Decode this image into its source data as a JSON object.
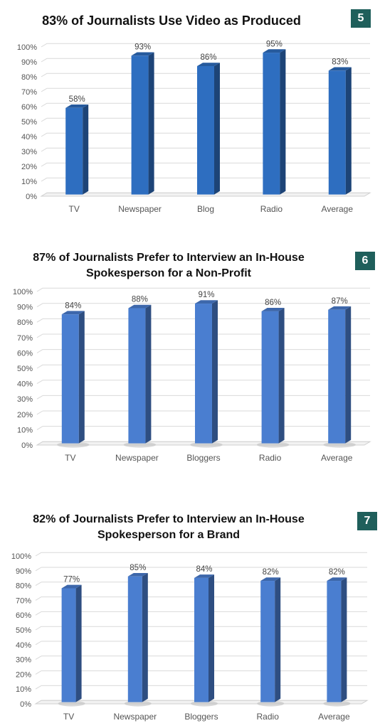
{
  "chart_data": [
    {
      "type": "bar",
      "title": "83% of Journalists Use Video as Produced",
      "badge": "5",
      "categories": [
        "TV",
        "Newspaper",
        "Blog",
        "Radio",
        "Average"
      ],
      "values": [
        58,
        93,
        86,
        95,
        83
      ],
      "value_labels": [
        "58%",
        "93%",
        "86%",
        "95%",
        "83%"
      ],
      "yticks": [
        "0%",
        "10%",
        "20%",
        "30%",
        "40%",
        "50%",
        "60%",
        "70%",
        "80%",
        "90%",
        "100%"
      ],
      "ylim": [
        0,
        100
      ],
      "grid": true,
      "bar_color": "#2e6ec0"
    },
    {
      "type": "bar",
      "title": "87% of Journalists Prefer to Interview an In-House Spokesperson for a Non-Profit",
      "title_lines": [
        "87% of Journalists Prefer to Interview an In-House",
        "Spokesperson for a Non-Profit"
      ],
      "badge": "6",
      "categories": [
        "TV",
        "Newspaper",
        "Bloggers",
        "Radio",
        "Average"
      ],
      "values": [
        84,
        88,
        91,
        86,
        87
      ],
      "value_labels": [
        "84%",
        "88%",
        "91%",
        "86%",
        "87%"
      ],
      "yticks": [
        "0%",
        "10%",
        "20%",
        "30%",
        "40%",
        "50%",
        "60%",
        "70%",
        "80%",
        "90%",
        "100%"
      ],
      "ylim": [
        0,
        100
      ],
      "grid": true,
      "bar_color": "#4a7ed0"
    },
    {
      "type": "bar",
      "title": "82% of Journalists Prefer to Interview an In-House Spokesperson for a Brand",
      "title_lines": [
        "82% of Journalists Prefer to Interview an In-House",
        "Spokesperson for a Brand"
      ],
      "badge": "7",
      "categories": [
        "TV",
        "Newspaper",
        "Bloggers",
        "Radio",
        "Average"
      ],
      "values": [
        77,
        85,
        84,
        82,
        82
      ],
      "value_labels": [
        "77%",
        "85%",
        "84%",
        "82%",
        "82%"
      ],
      "yticks": [
        "0%",
        "10%",
        "20%",
        "30%",
        "40%",
        "50%",
        "60%",
        "70%",
        "80%",
        "90%",
        "100%"
      ],
      "ylim": [
        0,
        100
      ],
      "grid": true,
      "bar_color": "#4a7ed0"
    }
  ]
}
